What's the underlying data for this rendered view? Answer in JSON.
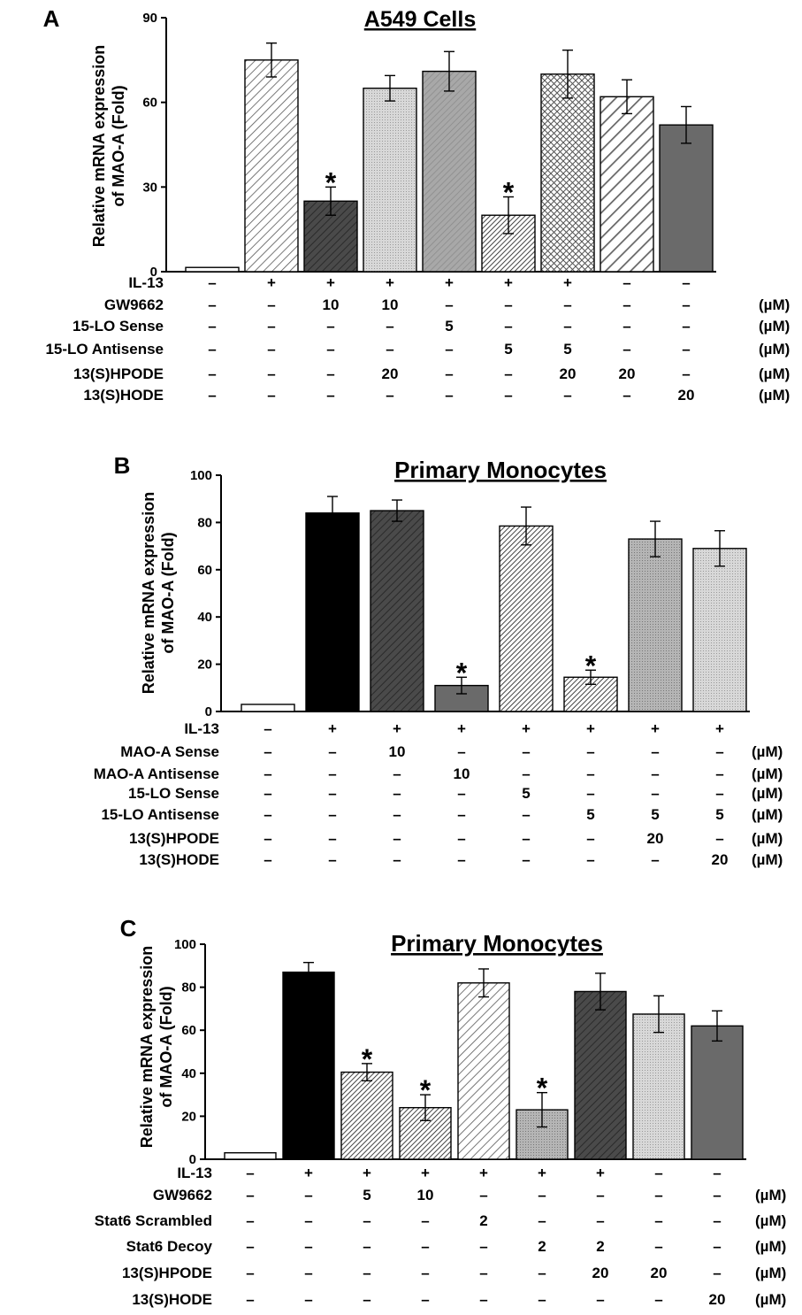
{
  "chart_data": [
    {
      "panel": "A",
      "type": "bar",
      "title": "A549 Cells",
      "ylabel": "Relative mRNA expression of MAO-A (Fold)",
      "ylim": [
        0,
        90
      ],
      "yticks": [
        "0",
        "30",
        "60",
        "90"
      ],
      "values": [
        1.5,
        75,
        25,
        65,
        71,
        20,
        70,
        62,
        52
      ],
      "errors": [
        0,
        6,
        5,
        4.5,
        7,
        6.5,
        8.5,
        6,
        6.5
      ],
      "significant": [
        false,
        false,
        true,
        false,
        false,
        true,
        false,
        false,
        false
      ],
      "fills": [
        "plain",
        "hatchDiagThin",
        "hatchDarkDiag",
        "dotsLight",
        "hatchGrayDiag",
        "hatchDiagDense",
        "crosshatch",
        "hatchDiagWide",
        "dark"
      ],
      "treatments": [
        {
          "label": "IL-13",
          "unit": "",
          "cells": [
            "–",
            "+",
            "+",
            "+",
            "+",
            "+",
            "+",
            "–",
            "–"
          ]
        },
        {
          "label": "GW9662",
          "unit": "(µM)",
          "cells": [
            "–",
            "–",
            "10",
            "10",
            "–",
            "–",
            "–",
            "–",
            "–"
          ]
        },
        {
          "label": "15-LO Sense",
          "unit": "(µM)",
          "cells": [
            "–",
            "–",
            "–",
            "–",
            "5",
            "–",
            "–",
            "–",
            "–"
          ]
        },
        {
          "label": "15-LO Antisense",
          "unit": "(µM)",
          "cells": [
            "–",
            "–",
            "–",
            "–",
            "–",
            "5",
            "5",
            "–",
            "–"
          ]
        },
        {
          "label": "13(S)HPODE",
          "unit": "(µM)",
          "cells": [
            "–",
            "–",
            "–",
            "20",
            "–",
            "–",
            "20",
            "20",
            "–"
          ]
        },
        {
          "label": "13(S)HODE",
          "unit": "(µM)",
          "cells": [
            "–",
            "–",
            "–",
            "–",
            "–",
            "–",
            "–",
            "–",
            "20"
          ]
        }
      ]
    },
    {
      "panel": "B",
      "type": "bar",
      "title": "Primary Monocytes",
      "ylabel": "Relative mRNA expression of MAO-A (Fold)",
      "ylim": [
        0,
        100
      ],
      "yticks": [
        "0",
        "20",
        "40",
        "60",
        "80",
        "100"
      ],
      "values": [
        3,
        84,
        85,
        11,
        78.5,
        14.5,
        73,
        69
      ],
      "errors": [
        0,
        7,
        4.5,
        3.5,
        8,
        3,
        7.5,
        7.5
      ],
      "significant": [
        false,
        false,
        false,
        true,
        false,
        true,
        false,
        false
      ],
      "fills": [
        "plain",
        "black",
        "hatchDarkDiag",
        "dark",
        "hatchDiagDense",
        "hatchDiagDense",
        "dotsMid",
        "dotsLight"
      ],
      "treatments": [
        {
          "label": "IL-13",
          "unit": "",
          "cells": [
            "–",
            "+",
            "+",
            "+",
            "+",
            "+",
            "+",
            "+"
          ]
        },
        {
          "label": "MAO-A Sense",
          "unit": "(µM)",
          "cells": [
            "–",
            "–",
            "10",
            "–",
            "–",
            "–",
            "–",
            "–"
          ]
        },
        {
          "label": "MAO-A Antisense",
          "unit": "(µM)",
          "cells": [
            "–",
            "–",
            "–",
            "10",
            "–",
            "–",
            "–",
            "–"
          ]
        },
        {
          "label": "15-LO Sense",
          "unit": "(µM)",
          "cells": [
            "–",
            "–",
            "–",
            "–",
            "5",
            "–",
            "–",
            "–"
          ]
        },
        {
          "label": "15-LO Antisense",
          "unit": "(µM)",
          "cells": [
            "–",
            "–",
            "–",
            "–",
            "–",
            "5",
            "5",
            "5"
          ]
        },
        {
          "label": "13(S)HPODE",
          "unit": "(µM)",
          "cells": [
            "–",
            "–",
            "–",
            "–",
            "–",
            "–",
            "20",
            "–"
          ]
        },
        {
          "label": "13(S)HODE",
          "unit": "(µM)",
          "cells": [
            "–",
            "–",
            "–",
            "–",
            "–",
            "–",
            "–",
            "20"
          ]
        }
      ]
    },
    {
      "panel": "C",
      "type": "bar",
      "title": "Primary Monocytes",
      "ylabel": "Relative mRNA expression of MAO-A (Fold)",
      "ylim": [
        0,
        100
      ],
      "yticks": [
        "0",
        "20",
        "40",
        "60",
        "80",
        "100"
      ],
      "values": [
        3,
        87,
        40.5,
        24,
        82,
        23,
        78,
        67.5,
        62
      ],
      "errors": [
        0,
        4.5,
        4,
        6,
        6.5,
        8,
        8.5,
        8.5,
        7
      ],
      "significant": [
        false,
        false,
        true,
        true,
        false,
        true,
        false,
        false,
        false
      ],
      "fills": [
        "plain",
        "black",
        "hatchDiagDense",
        "hatchDiagDense",
        "hatchDiagThin",
        "dotsMid",
        "hatchDarkDiag",
        "dotsLight",
        "dark"
      ],
      "treatments": [
        {
          "label": "IL-13",
          "unit": "",
          "cells": [
            "–",
            "+",
            "+",
            "+",
            "+",
            "+",
            "+",
            "–",
            "–"
          ]
        },
        {
          "label": "GW9662",
          "unit": "(µM)",
          "cells": [
            "–",
            "–",
            "5",
            "10",
            "–",
            "–",
            "–",
            "–",
            "–"
          ]
        },
        {
          "label": "Stat6 Scrambled",
          "unit": "(µM)",
          "cells": [
            "–",
            "–",
            "–",
            "–",
            "2",
            "–",
            "–",
            "–",
            "–"
          ]
        },
        {
          "label": "Stat6 Decoy",
          "unit": "(µM)",
          "cells": [
            "–",
            "–",
            "–",
            "–",
            "–",
            "2",
            "2",
            "–",
            "–"
          ]
        },
        {
          "label": "13(S)HPODE",
          "unit": "(µM)",
          "cells": [
            "–",
            "–",
            "–",
            "–",
            "–",
            "–",
            "20",
            "20",
            "–"
          ]
        },
        {
          "label": "13(S)HODE",
          "unit": "(µM)",
          "cells": [
            "–",
            "–",
            "–",
            "–",
            "–",
            "–",
            "–",
            "–",
            "20"
          ]
        }
      ]
    }
  ],
  "marks": {
    "significance": "*"
  }
}
